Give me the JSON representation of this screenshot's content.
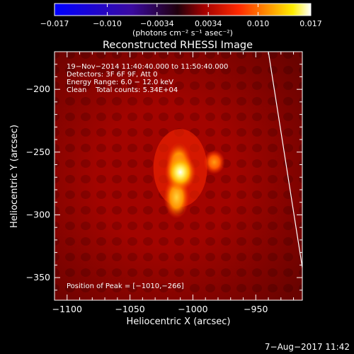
{
  "chart_data": {
    "type": "heatmap",
    "title": "Reconstructed RHESSI Image",
    "xlabel": "Heliocentric X (arcsec)",
    "ylabel": "Heliocentric Y (arcsec)",
    "xlim": [
      -1110,
      -913
    ],
    "ylim": [
      -368,
      -170
    ],
    "x_ticks": [
      -1100,
      -1050,
      -1000,
      -950
    ],
    "x_tick_labels": [
      "−1100",
      "−1050",
      "−1000",
      "−950"
    ],
    "y_ticks": [
      -200,
      -250,
      -300,
      -350
    ],
    "y_tick_labels": [
      "−200",
      "−250",
      "−300",
      "−350"
    ],
    "colorbar": {
      "range": [
        -0.017,
        0.017
      ],
      "ticks": [
        -0.017,
        -0.01,
        -0.0034,
        0.0034,
        0.01,
        0.017
      ],
      "tick_labels": [
        "−0.017",
        "−0.010",
        "−0.0034",
        "0.0034",
        "0.010",
        "0.017"
      ],
      "units_label": "(photons cm⁻² s⁻¹ asec⁻²)",
      "colors": [
        "#0000ff",
        "#3a0aa0",
        "#20000c",
        "#a00000",
        "#ff2a00",
        "#ff9900",
        "#ffee00",
        "#ffffff"
      ]
    },
    "annotations": [
      "19−Nov−2014 11:40:40.000 to 11:50:40.000",
      "Detectors: 3F 6F 9F, Att 0",
      "Energy Range: 6.0 − 12.0 keV",
      "Clean    Total counts: 5.34E+04"
    ],
    "peak_label": "Position of Peak = [−1010,−266]",
    "sources": [
      {
        "x": -1010,
        "y": -266,
        "intensity": 1.0
      },
      {
        "x": -1013,
        "y": -286,
        "intensity": 0.6
      },
      {
        "x": -983,
        "y": -258,
        "intensity": 0.4
      }
    ],
    "limb_points": [
      [
        -940,
        -170
      ],
      [
        -913,
        -342
      ]
    ],
    "grid": false
  },
  "footer": {
    "date": "7−Aug−2017 11:42"
  }
}
